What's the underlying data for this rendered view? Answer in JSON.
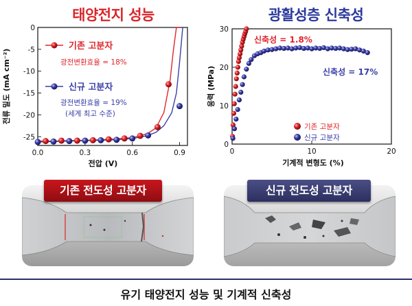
{
  "left_panel": {
    "title": "태양전지 성능"
  },
  "right_panel": {
    "title": "광활성층 신축성"
  },
  "chart_data": [
    {
      "type": "line",
      "title": "태양전지 성능",
      "xlabel": "전압 (V)",
      "ylabel": "전류 밀도 (mA cm⁻²)",
      "xlim": [
        0.0,
        0.95
      ],
      "ylim": [
        -27,
        0
      ],
      "x_ticks": [
        "0.0",
        "0.3",
        "0.6",
        "0.9"
      ],
      "y_ticks": [
        "0",
        "-5",
        "-10",
        "-15",
        "-20",
        "-25"
      ],
      "legend": [
        {
          "label": "기존 고분자",
          "note": "광전변환효율 = 18%",
          "color": "#e0252b"
        },
        {
          "label": "신규 고분자",
          "note": "광전변환효율 = 19%",
          "note2": "(세계 최고 수준)",
          "color": "#3a3fa8"
        }
      ],
      "series": [
        {
          "name": "기존 고분자",
          "color": "#e0252b",
          "x": [
            0.0,
            0.1,
            0.2,
            0.3,
            0.4,
            0.5,
            0.6,
            0.65,
            0.7,
            0.75,
            0.8,
            0.84,
            0.86,
            0.88,
            0.9
          ],
          "y": [
            -26.0,
            -26.0,
            -25.9,
            -25.8,
            -25.7,
            -25.5,
            -25.2,
            -24.8,
            -24.2,
            -23.0,
            -19.5,
            -12.0,
            -5.5,
            0.0,
            0.0
          ],
          "marker_x": [
            0.05,
            0.15,
            0.25,
            0.35,
            0.45,
            0.55,
            0.65,
            0.76,
            0.83
          ],
          "marker_y": [
            -26.0,
            -25.9,
            -25.9,
            -25.8,
            -25.6,
            -25.4,
            -24.8,
            -22.8,
            -13.0
          ]
        },
        {
          "name": "신규 고분자",
          "color": "#3a3fa8",
          "x": [
            0.0,
            0.1,
            0.2,
            0.3,
            0.4,
            0.5,
            0.6,
            0.65,
            0.7,
            0.75,
            0.8,
            0.85,
            0.88,
            0.9,
            0.92
          ],
          "y": [
            -26.2,
            -26.1,
            -26.0,
            -25.9,
            -25.8,
            -25.7,
            -25.4,
            -25.1,
            -24.7,
            -24.0,
            -22.5,
            -19.5,
            -15.0,
            -8.0,
            0.0
          ],
          "marker_x": [
            0.0,
            0.1,
            0.2,
            0.3,
            0.4,
            0.5,
            0.6,
            0.7,
            0.9
          ],
          "marker_y": [
            -26.2,
            -26.1,
            -26.0,
            -25.9,
            -25.8,
            -25.7,
            -25.4,
            -24.7,
            -18.0
          ]
        }
      ]
    },
    {
      "type": "scatter",
      "title": "광활성층 신축성",
      "xlabel": "기계적 변형도 (%)",
      "ylabel": "응력 (MPa)",
      "xlim": [
        0,
        20
      ],
      "ylim": [
        0,
        30
      ],
      "x_ticks": [
        "0",
        "10",
        "20"
      ],
      "y_ticks": [
        "0",
        "10",
        "20",
        "30"
      ],
      "legend": [
        {
          "label": "기존 고분자",
          "color": "#e0252b"
        },
        {
          "label": "신규 고분자",
          "color": "#3a3fa8"
        }
      ],
      "annotations": [
        {
          "text": "신축성 = 1.8%",
          "color": "#e0252b"
        },
        {
          "text": "신축성 = 17%",
          "color": "#3a3fa8"
        }
      ],
      "series": [
        {
          "name": "기존 고분자",
          "color": "#e0252b",
          "x": [
            0.05,
            0.12,
            0.2,
            0.28,
            0.36,
            0.45,
            0.54,
            0.63,
            0.72,
            0.81,
            0.9,
            1.0,
            1.1,
            1.2,
            1.3,
            1.4,
            1.5,
            1.6,
            1.7,
            1.8
          ],
          "y": [
            2,
            5,
            8,
            10.5,
            13,
            15,
            17,
            18.5,
            20,
            21.5,
            22.5,
            23.5,
            24.5,
            25.5,
            26.5,
            27.3,
            28,
            28.7,
            29.3,
            30
          ]
        },
        {
          "name": "신규 고분자",
          "color": "#3a3fa8",
          "x": [
            0.1,
            0.3,
            0.5,
            0.7,
            0.9,
            1.1,
            1.3,
            1.5,
            1.8,
            2.1,
            2.4,
            2.8,
            3.2,
            3.6,
            4.0,
            4.5,
            5.0,
            5.5,
            6.0,
            6.5,
            7.0,
            7.5,
            8.0,
            8.5,
            9.0,
            9.5,
            10.0,
            10.5,
            11.0,
            11.5,
            12.0,
            12.5,
            13.0,
            13.5,
            14.0,
            14.5,
            15.0,
            15.5,
            16.0,
            16.5,
            17.0
          ],
          "y": [
            1.5,
            4,
            6.5,
            9,
            11.5,
            13.5,
            15.5,
            17.5,
            19.5,
            21,
            22,
            23,
            23.5,
            23.8,
            24.2,
            24.5,
            24.6,
            24.8,
            25,
            24.9,
            25,
            24.8,
            25,
            25.1,
            24.9,
            25,
            24.8,
            25,
            24.9,
            25.1,
            24.8,
            25,
            24.9,
            25,
            24.8,
            24.6,
            24.7,
            24.8,
            24.5,
            24.2,
            23.8
          ]
        }
      ]
    }
  ],
  "photos": {
    "left_label": "기존 전도성 고분자",
    "right_label": "신규 전도성 고분자"
  },
  "caption": "유기 태양전지 성능 및 기계적 신축성",
  "colors": {
    "red": "#e0252b",
    "blue": "#3a3fa8",
    "title_red": "#d9262b",
    "title_blue": "#2b3a9c"
  }
}
